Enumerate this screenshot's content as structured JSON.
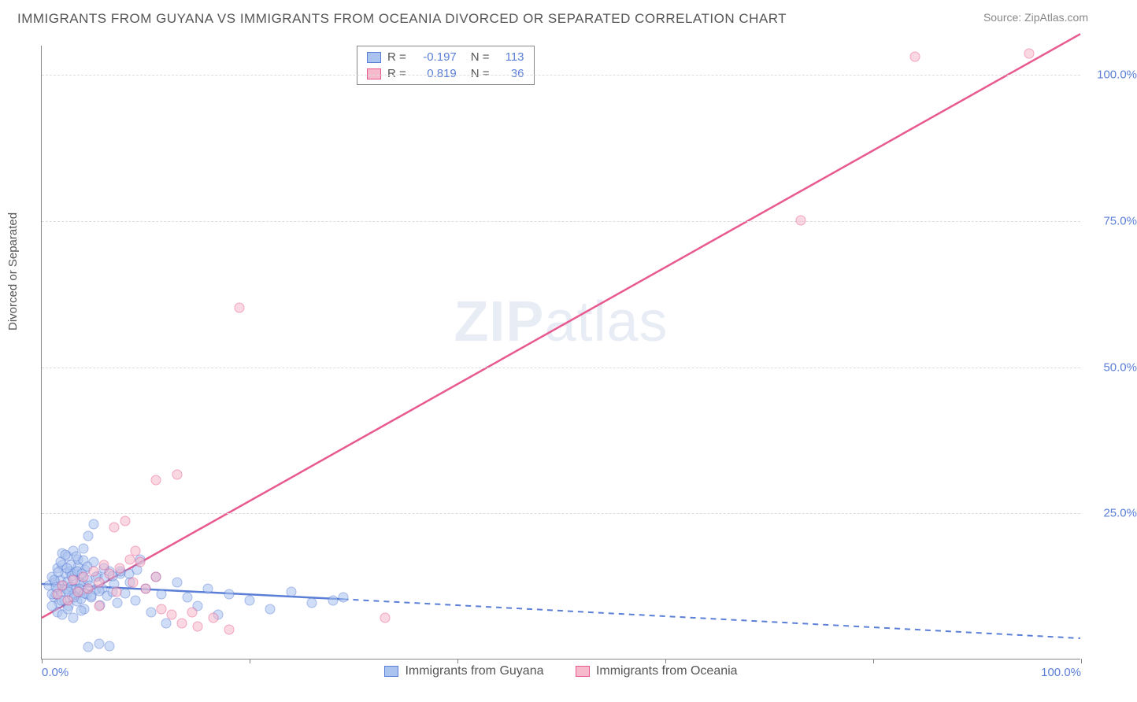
{
  "title": "IMMIGRANTS FROM GUYANA VS IMMIGRANTS FROM OCEANIA DIVORCED OR SEPARATED CORRELATION CHART",
  "source_prefix": "Source: ",
  "source_name": "ZipAtlas.com",
  "ylabel": "Divorced or Separated",
  "watermark_a": "ZIP",
  "watermark_b": "atlas",
  "chart": {
    "type": "scatter",
    "background_color": "#ffffff",
    "grid_color": "#dddddd",
    "axis_color": "#888888",
    "tick_label_color": "#5b7fd6",
    "label_fontsize": 15,
    "xlim": [
      0,
      100
    ],
    "ylim": [
      0,
      105
    ],
    "y_ticks": [
      25,
      50,
      75,
      100
    ],
    "y_tick_labels": [
      "25.0%",
      "50.0%",
      "75.0%",
      "100.0%"
    ],
    "x_ticks": [
      0,
      20,
      40,
      60,
      80,
      100
    ],
    "x_tick_labels": [
      "0.0%",
      "",
      "",
      "",
      "",
      "100.0%"
    ],
    "marker_radius": 6.5,
    "marker_opacity": 0.55
  },
  "series": [
    {
      "name": "Immigrants from Guyana",
      "fill": "#aac3ef",
      "stroke": "#5b7fd6",
      "r_value": "-0.197",
      "n_value": "113",
      "trend": {
        "x1": 0,
        "y1": 12.8,
        "x2": 29,
        "y2": 10.2,
        "solid": true,
        "dash_x2": 100,
        "dash_y2": 3.5
      },
      "points": [
        [
          0.7,
          12.5
        ],
        [
          1.0,
          14.0
        ],
        [
          1.2,
          10.5
        ],
        [
          1.3,
          13.0
        ],
        [
          1.4,
          11.0
        ],
        [
          1.5,
          15.5
        ],
        [
          1.6,
          12.0
        ],
        [
          1.7,
          9.5
        ],
        [
          1.8,
          13.5
        ],
        [
          1.9,
          11.5
        ],
        [
          2.0,
          16.0
        ],
        [
          2.1,
          12.5
        ],
        [
          2.2,
          10.0
        ],
        [
          2.3,
          14.5
        ],
        [
          2.4,
          11.8
        ],
        [
          2.5,
          13.2
        ],
        [
          2.6,
          9.0
        ],
        [
          2.7,
          15.0
        ],
        [
          2.8,
          12.3
        ],
        [
          2.9,
          10.8
        ],
        [
          3.0,
          13.8
        ],
        [
          3.1,
          11.2
        ],
        [
          3.2,
          14.8
        ],
        [
          3.3,
          12.0
        ],
        [
          3.4,
          9.8
        ],
        [
          3.5,
          15.8
        ],
        [
          3.6,
          11.5
        ],
        [
          3.7,
          13.0
        ],
        [
          3.8,
          10.2
        ],
        [
          3.9,
          14.0
        ],
        [
          4.0,
          12.8
        ],
        [
          4.1,
          8.5
        ],
        [
          4.2,
          15.2
        ],
        [
          4.3,
          11.0
        ],
        [
          4.4,
          13.5
        ],
        [
          4.6,
          12.5
        ],
        [
          4.8,
          10.5
        ],
        [
          5.0,
          16.5
        ],
        [
          5.2,
          11.8
        ],
        [
          5.4,
          14.2
        ],
        [
          5.6,
          9.2
        ],
        [
          5.8,
          12.0
        ],
        [
          6.0,
          13.8
        ],
        [
          6.3,
          10.8
        ],
        [
          6.5,
          15.0
        ],
        [
          6.8,
          11.5
        ],
        [
          7.0,
          12.8
        ],
        [
          7.3,
          9.5
        ],
        [
          7.6,
          14.5
        ],
        [
          8.0,
          11.2
        ],
        [
          8.5,
          13.0
        ],
        [
          9.0,
          10.0
        ],
        [
          9.5,
          17.0
        ],
        [
          10.0,
          12.0
        ],
        [
          10.5,
          8.0
        ],
        [
          11.0,
          14.0
        ],
        [
          11.5,
          11.0
        ],
        [
          12.0,
          6.0
        ],
        [
          13.0,
          13.0
        ],
        [
          14.0,
          10.5
        ],
        [
          15.0,
          9.0
        ],
        [
          16.0,
          12.0
        ],
        [
          17.0,
          7.5
        ],
        [
          18.0,
          11.0
        ],
        [
          20.0,
          10.0
        ],
        [
          22.0,
          8.5
        ],
        [
          24.0,
          11.5
        ],
        [
          26.0,
          9.5
        ],
        [
          28.0,
          10.0
        ],
        [
          29.0,
          10.5
        ],
        [
          2.0,
          18.0
        ],
        [
          2.5,
          17.5
        ],
        [
          3.0,
          18.5
        ],
        [
          3.5,
          17.0
        ],
        [
          4.0,
          18.8
        ],
        [
          1.5,
          8.0
        ],
        [
          2.0,
          7.5
        ],
        [
          2.5,
          8.5
        ],
        [
          3.0,
          7.0
        ],
        [
          3.8,
          8.2
        ],
        [
          4.5,
          21.0
        ],
        [
          5.0,
          23.0
        ],
        [
          1.8,
          16.5
        ],
        [
          2.3,
          17.8
        ],
        [
          2.8,
          16.0
        ],
        [
          3.3,
          17.5
        ],
        [
          4.0,
          16.8
        ],
        [
          1.2,
          13.5
        ],
        [
          1.6,
          14.8
        ],
        [
          2.4,
          15.5
        ],
        [
          2.9,
          14.2
        ],
        [
          3.4,
          15.0
        ],
        [
          3.9,
          14.5
        ],
        [
          4.4,
          15.8
        ],
        [
          5.2,
          14.0
        ],
        [
          6.0,
          15.5
        ],
        [
          6.8,
          14.2
        ],
        [
          7.6,
          15.0
        ],
        [
          8.4,
          14.5
        ],
        [
          9.2,
          15.2
        ],
        [
          1.0,
          11.0
        ],
        [
          1.4,
          12.2
        ],
        [
          1.9,
          10.0
        ],
        [
          2.6,
          11.5
        ],
        [
          3.1,
          10.5
        ],
        [
          3.6,
          12.0
        ],
        [
          4.1,
          11.2
        ],
        [
          4.8,
          10.8
        ],
        [
          5.5,
          11.6
        ],
        [
          4.5,
          2.0
        ],
        [
          5.5,
          2.5
        ],
        [
          6.5,
          2.2
        ],
        [
          1.0,
          9.0
        ]
      ]
    },
    {
      "name": "Immigrants from Oceania",
      "fill": "#f7b9cc",
      "stroke": "#e85a8f",
      "r_value": "0.819",
      "n_value": "36",
      "trend": {
        "x1": 0,
        "y1": 7.0,
        "x2": 100,
        "y2": 107.0,
        "solid": true
      },
      "points": [
        [
          1.5,
          11.0
        ],
        [
          2.0,
          12.5
        ],
        [
          2.5,
          10.0
        ],
        [
          3.0,
          13.5
        ],
        [
          3.5,
          11.5
        ],
        [
          4.0,
          14.0
        ],
        [
          4.5,
          12.0
        ],
        [
          5.0,
          15.0
        ],
        [
          5.5,
          13.0
        ],
        [
          6.0,
          16.0
        ],
        [
          6.5,
          14.5
        ],
        [
          7.0,
          22.5
        ],
        [
          7.5,
          15.5
        ],
        [
          8.0,
          23.5
        ],
        [
          8.5,
          17.0
        ],
        [
          9.0,
          18.5
        ],
        [
          9.5,
          16.5
        ],
        [
          10.0,
          12.0
        ],
        [
          11.0,
          14.0
        ],
        [
          11.5,
          8.5
        ],
        [
          12.5,
          7.5
        ],
        [
          13.5,
          6.0
        ],
        [
          14.5,
          8.0
        ],
        [
          15.0,
          5.5
        ],
        [
          16.5,
          7.0
        ],
        [
          18.0,
          5.0
        ],
        [
          7.2,
          11.5
        ],
        [
          8.8,
          13.0
        ],
        [
          11.0,
          30.5
        ],
        [
          13.0,
          31.5
        ],
        [
          19.0,
          60.0
        ],
        [
          33.0,
          7.0
        ],
        [
          73.0,
          75.0
        ],
        [
          84.0,
          103.0
        ],
        [
          95.0,
          103.5
        ],
        [
          5.5,
          9.0
        ]
      ]
    }
  ],
  "legend_top": {
    "r_label": "R =",
    "n_label": "N ="
  }
}
